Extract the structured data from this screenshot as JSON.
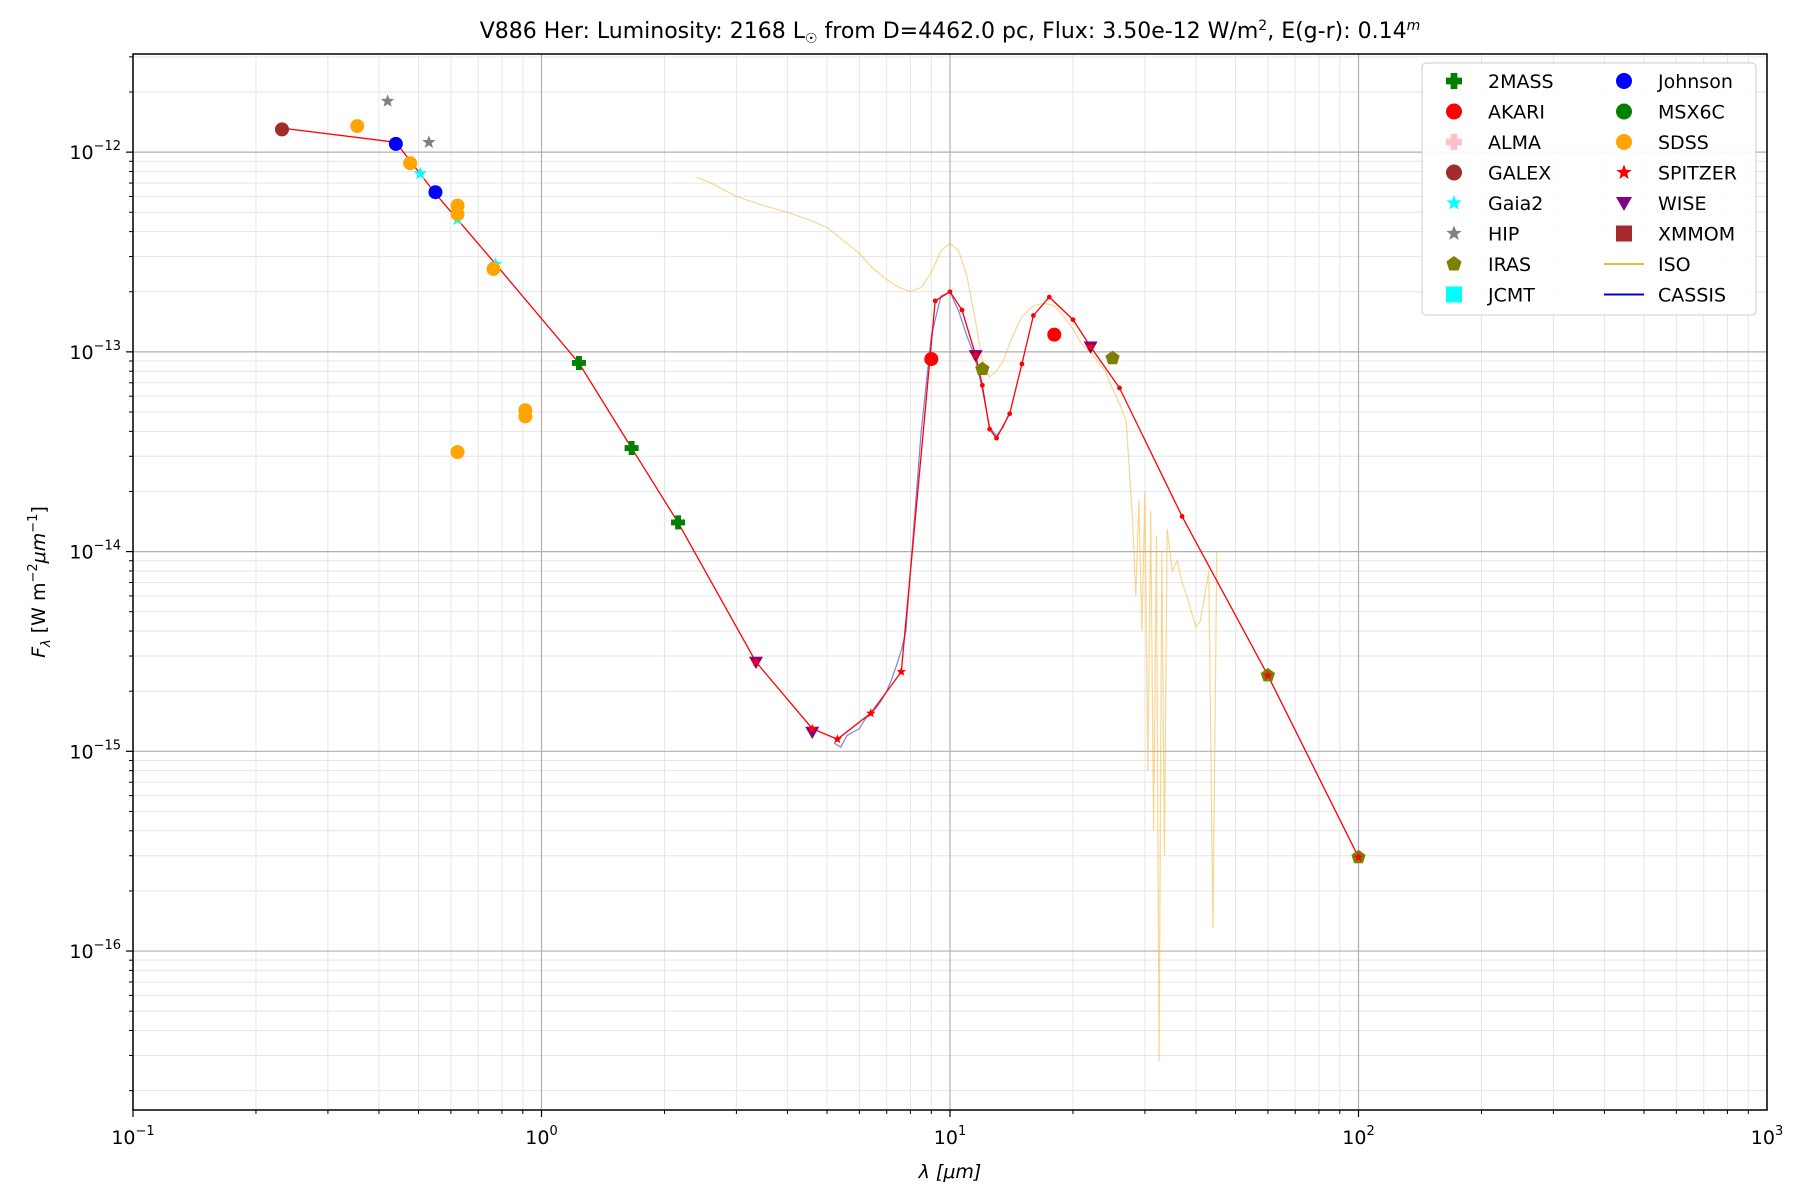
{
  "chart_data": {
    "type": "scatter",
    "title": {
      "prefix": "V886 Her:  Luminosity: 2168 L",
      "sun_symbol": "☉",
      "middle": " from D=4462.0 pc, Flux: 3.50e-12 W/m",
      "exp": "2",
      "suffix": ", E(g-r): 0.14",
      "sup": "m"
    },
    "xlabel": {
      "lambda": "λ",
      "unit": "[μm]"
    },
    "ylabel": {
      "f": "F",
      "sub": "λ",
      "unit_pre": "[W m",
      "exp1": "−2",
      "mid": "μm",
      "exp2": "−1",
      "close": "]"
    },
    "x_scale": "log",
    "y_scale": "log",
    "xlim": [
      0.1,
      1000
    ],
    "ylim": [
      1.6e-17,
      3.1e-12
    ],
    "x_ticks": [
      {
        "value": 0.1,
        "base": "10",
        "exp": "−1"
      },
      {
        "value": 1,
        "base": "10",
        "exp": "0"
      },
      {
        "value": 10,
        "base": "10",
        "exp": "1"
      },
      {
        "value": 100,
        "base": "10",
        "exp": "2"
      },
      {
        "value": 1000,
        "base": "10",
        "exp": "3"
      }
    ],
    "y_ticks": [
      {
        "value": 1e-16,
        "base": "10",
        "exp": "−16"
      },
      {
        "value": 1e-15,
        "base": "10",
        "exp": "−15"
      },
      {
        "value": 1e-14,
        "base": "10",
        "exp": "−14"
      },
      {
        "value": 1e-13,
        "base": "10",
        "exp": "−13"
      },
      {
        "value": 1e-12,
        "base": "10",
        "exp": "−12"
      }
    ],
    "grid": true,
    "legend_position": "top-right",
    "legend": [
      {
        "label": "2MASS",
        "marker": "plus",
        "color": "#008000"
      },
      {
        "label": "AKARI",
        "marker": "circle",
        "color": "#ff0000"
      },
      {
        "label": "ALMA",
        "marker": "plus",
        "color": "#ffc0cb"
      },
      {
        "label": "GALEX",
        "marker": "circle",
        "color": "#a52a2a"
      },
      {
        "label": "Gaia2",
        "marker": "star",
        "color": "#00ffff"
      },
      {
        "label": "HIP",
        "marker": "star",
        "color": "#808080"
      },
      {
        "label": "IRAS",
        "marker": "pentagon",
        "color": "#808000"
      },
      {
        "label": "JCMT",
        "marker": "square",
        "color": "#00ffff"
      },
      {
        "label": "Johnson",
        "marker": "circle",
        "color": "#0000ff"
      },
      {
        "label": "MSX6C",
        "marker": "circle",
        "color": "#008000"
      },
      {
        "label": "SDSS",
        "marker": "circle",
        "color": "#ffa500"
      },
      {
        "label": "SPITZER",
        "marker": "star",
        "color": "#ff0000"
      },
      {
        "label": "WISE",
        "marker": "triangle-down",
        "color": "#800080"
      },
      {
        "label": "XMMOM",
        "marker": "square",
        "color": "#a52a2a"
      },
      {
        "label": "ISO",
        "marker": "line",
        "color": "#f5b537"
      },
      {
        "label": "CASSIS",
        "marker": "line",
        "color": "#0000cc"
      }
    ],
    "series": [
      {
        "name": "2MASS",
        "marker": "plus",
        "color": "#008000",
        "x": [
          1.235,
          1.662,
          2.159
        ],
        "y": [
          8.8e-14,
          3.3e-14,
          1.4e-14
        ]
      },
      {
        "name": "AKARI",
        "marker": "circle",
        "color": "#ff0000",
        "x": [
          9.0,
          18.0
        ],
        "y": [
          9.2e-14,
          1.22e-13
        ]
      },
      {
        "name": "GALEX",
        "marker": "circle",
        "color": "#a52a2a",
        "x": [
          0.2316
        ],
        "y": [
          1.3e-12
        ]
      },
      {
        "name": "Gaia2",
        "marker": "star",
        "color": "#00ffff",
        "x": [
          0.505,
          0.623,
          0.772
        ],
        "y": [
          7.8e-13,
          4.6e-13,
          2.75e-13
        ]
      },
      {
        "name": "HIP",
        "marker": "star",
        "color": "#808080",
        "x": [
          0.42,
          0.53
        ],
        "y": [
          1.8e-12,
          1.12e-12
        ]
      },
      {
        "name": "IRAS",
        "marker": "pentagon",
        "color": "#808000",
        "x": [
          12,
          25,
          60,
          100
        ],
        "y": [
          8.2e-14,
          9.3e-14,
          2.4e-15,
          2.95e-16
        ]
      },
      {
        "name": "Johnson",
        "marker": "circle",
        "color": "#0000ff",
        "x": [
          0.44,
          0.55
        ],
        "y": [
          1.1e-12,
          6.3e-13
        ]
      },
      {
        "name": "SDSS",
        "marker": "circle",
        "color": "#ffa500",
        "x": [
          0.354,
          0.477,
          0.623,
          0.623,
          0.623,
          0.763,
          0.913,
          0.913
        ],
        "y": [
          1.35e-12,
          8.8e-13,
          5.4e-13,
          4.9e-13,
          3.15e-14,
          2.6e-13,
          5.1e-14,
          4.75e-14
        ]
      },
      {
        "name": "WISE",
        "marker": "triangle-down",
        "color": "#800080",
        "x": [
          3.35,
          4.6,
          11.56,
          22.09
        ],
        "y": [
          2.8e-15,
          1.25e-15,
          9.6e-14,
          1.06e-13
        ]
      },
      {
        "name": "SPITZER",
        "marker": "star",
        "color": "#ff0000",
        "x": [
          3.35,
          4.6,
          5.3,
          6.4,
          7.6,
          9.0,
          11.56,
          22.09,
          60,
          100
        ],
        "y": [
          2.8e-15,
          1.3e-15,
          1.15e-15,
          1.55e-15,
          2.5e-15,
          9.2e-14,
          9.6e-14,
          1.06e-13,
          2.4e-15,
          2.95e-16
        ]
      }
    ],
    "sed_line": {
      "name": "SED",
      "color": "#ff0000",
      "x": [
        0.2316,
        0.44,
        0.55,
        0.772,
        1.235,
        1.662,
        2.159,
        3.35,
        4.6,
        5.3,
        6.4,
        7.6,
        9.2,
        10.0,
        10.7,
        11.56,
        12.0,
        12.5,
        13.0,
        14.0,
        15.0,
        16.0,
        17.5,
        20.0,
        22.09,
        26.0,
        37.0,
        60.0,
        100.0
      ],
      "y": [
        1.32e-12,
        1.12e-12,
        6.2e-13,
        2.75e-13,
        8.8e-14,
        3.3e-14,
        1.4e-14,
        2.8e-15,
        1.3e-15,
        1.15e-15,
        1.55e-15,
        2.5e-15,
        1.8e-13,
        2e-13,
        1.62e-13,
        9.6e-14,
        6.8e-14,
        4.1e-14,
        3.7e-14,
        4.9e-14,
        8.7e-14,
        1.52e-13,
        1.88e-13,
        1.45e-13,
        1.06e-13,
        6.6e-14,
        1.5e-14,
        2.4e-15,
        2.95e-16
      ]
    },
    "iso_spectrum": {
      "name": "ISO",
      "color": "#f5b537",
      "x": [
        2.4,
        2.6,
        3.0,
        3.5,
        4.0,
        4.5,
        5.0,
        5.5,
        6.0,
        6.5,
        7.0,
        7.5,
        8.0,
        8.5,
        9.0,
        9.5,
        10.0,
        10.5,
        11.0,
        11.5,
        12.0,
        12.5,
        13.0,
        13.5,
        14.0,
        14.5,
        15.0,
        16.0,
        17.0,
        18.0,
        19.0,
        20.0,
        21.0,
        22.0,
        23.0,
        24.0,
        25.0,
        26.0,
        27.0,
        28.0,
        28.5,
        29.0,
        29.5,
        30.0,
        30.5,
        31.0,
        31.5,
        32.0,
        32.5,
        33.0,
        33.5,
        34.0,
        35.0,
        36.0,
        37.0,
        38.0,
        39.0,
        40.0,
        41.0,
        42.0,
        43.0,
        44.0,
        45.0
      ],
      "y": [
        7.5e-13,
        7e-13,
        6e-13,
        5.4e-13,
        5e-13,
        4.6e-13,
        4.2e-13,
        3.6e-13,
        3.1e-13,
        2.6e-13,
        2.3e-13,
        2.1e-13,
        2e-13,
        2.1e-13,
        2.5e-13,
        3.2e-13,
        3.5e-13,
        3.2e-13,
        2.4e-13,
        1.5e-13,
        9e-14,
        7.5e-14,
        8e-14,
        9e-14,
        1.1e-13,
        1.3e-13,
        1.5e-13,
        1.7e-13,
        1.75e-13,
        1.7e-13,
        1.5e-13,
        1.3e-13,
        1.1e-13,
        1e-13,
        9e-14,
        8e-14,
        6.5e-14,
        5.5e-14,
        4.5e-14,
        1.4e-14,
        6e-15,
        1.8e-14,
        4e-15,
        2e-14,
        8e-16,
        1.6e-14,
        4e-16,
        1.2e-14,
        2.8e-17,
        1e-14,
        3e-16,
        1.3e-14,
        8e-15,
        9e-15,
        7e-15,
        6e-15,
        5e-15,
        4.2e-15,
        4.5e-15,
        6e-15,
        8e-15,
        1.3e-16,
        1e-14
      ]
    },
    "cassis_spectrum": {
      "name": "CASSIS",
      "color": "#0000cc",
      "x": [
        5.2,
        5.4,
        5.6,
        5.8,
        6.0,
        6.2,
        6.4,
        6.6,
        6.8,
        7.0,
        7.2,
        7.4,
        7.6,
        7.8,
        8.0,
        8.5,
        9.0,
        9.5,
        10.0,
        10.5,
        11.0,
        11.5,
        12.0,
        12.5,
        13.0,
        13.5,
        14.0
      ],
      "y": [
        1.1e-15,
        1.05e-15,
        1.2e-15,
        1.25e-15,
        1.3e-15,
        1.45e-15,
        1.55e-15,
        1.65e-15,
        1.8e-15,
        2e-15,
        2.3e-15,
        2.7e-15,
        3.2e-15,
        4e-15,
        8e-15,
        4e-14,
        1.2e-13,
        1.9e-13,
        2e-13,
        1.6e-13,
        1.2e-13,
        9.5e-14,
        6.5e-14,
        4.2e-14,
        3.8e-14,
        4.2e-14,
        5e-14
      ]
    }
  }
}
